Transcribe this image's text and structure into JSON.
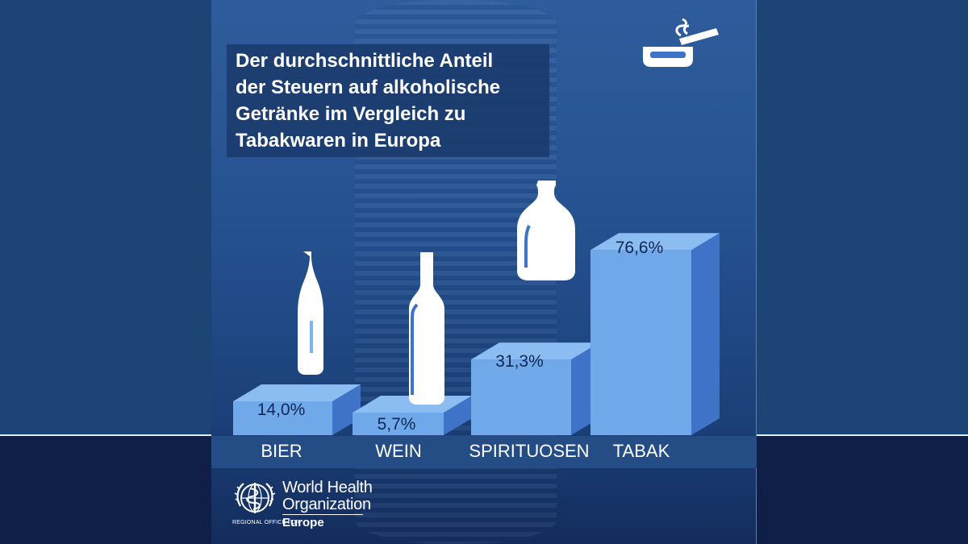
{
  "chart_data": {
    "type": "bar",
    "title": "Der durchschnittliche Anteil der Steuern auf alkoholische Getränke im Vergleich zu Tabakwaren in Europa",
    "title_lines": [
      "Der durchschnittliche Anteil",
      "der Steuern auf alkoholische",
      "Getränke im Vergleich zu",
      "Tabakwaren in Europa"
    ],
    "categories": [
      "BIER",
      "WEIN",
      "SPIRITUOSEN",
      "TABAK"
    ],
    "values": [
      14.0,
      5.7,
      31.3,
      76.6
    ],
    "value_labels": [
      "14,0%",
      "5,7%",
      "31,3%",
      "76,6%"
    ],
    "icons": [
      "beer-bottle-icon",
      "wine-bottle-icon",
      "spirits-bottle-icon",
      "ashtray-cigarette-icon"
    ],
    "unit": "%",
    "colors": {
      "bar_front": "#6fa9ea",
      "bar_top": "#8bbcf2",
      "bar_side": "#3e73c8",
      "value_text": "#0e2756"
    }
  },
  "footer": {
    "logo_line1": "World Health",
    "logo_line2": "Organization",
    "region_prefix": "REGIONAL OFFICE FOR",
    "region_name": "Europe",
    "logo_icon": "who-emblem-icon"
  }
}
